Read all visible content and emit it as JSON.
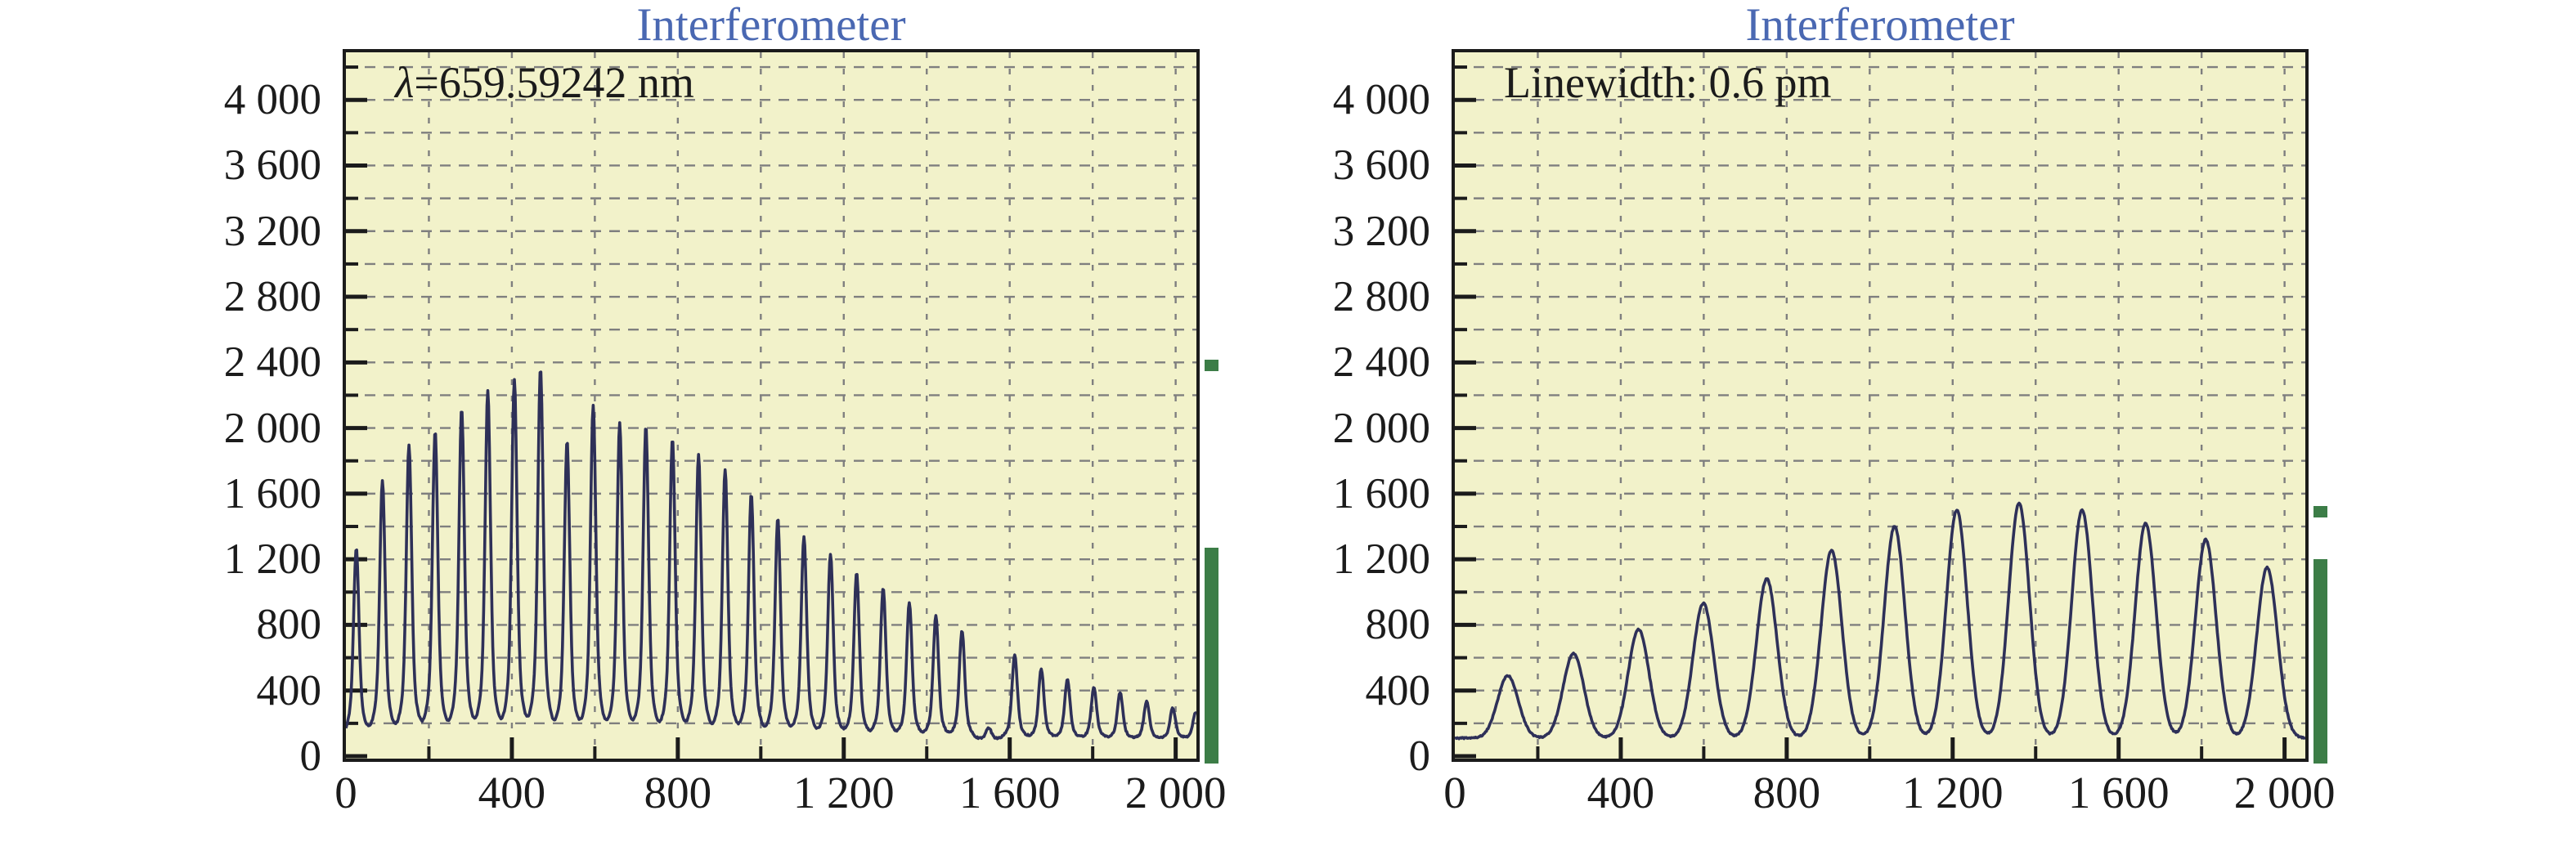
{
  "chart_data": [
    {
      "type": "line",
      "title": "Interferometer",
      "annotation_symbol": "λ",
      "annotation_rest": "=659.59242 nm",
      "xlabel": "",
      "ylabel": "",
      "xlim": [
        0,
        2050
      ],
      "ylim": [
        -15,
        4290
      ],
      "grid_step": 200,
      "label_step": 400,
      "legend": "none",
      "grid": "dashed",
      "x_ticks": [
        {
          "v": 0,
          "label": "0"
        },
        {
          "v": 400,
          "label": "400"
        },
        {
          "v": 800,
          "label": "800"
        },
        {
          "v": 1200,
          "label": "1 200"
        },
        {
          "v": 1600,
          "label": "1 600"
        },
        {
          "v": 2000,
          "label": "2 000"
        }
      ],
      "y_ticks": [
        {
          "v": 0,
          "label": "0"
        },
        {
          "v": 400,
          "label": "400"
        },
        {
          "v": 800,
          "label": "800"
        },
        {
          "v": 1200,
          "label": "1 200"
        },
        {
          "v": 1600,
          "label": "1 600"
        },
        {
          "v": 2000,
          "label": "2 000"
        },
        {
          "v": 2400,
          "label": "2 400"
        },
        {
          "v": 2800,
          "label": "2 800"
        },
        {
          "v": 3200,
          "label": "3 200"
        },
        {
          "v": 3600,
          "label": "3 600"
        },
        {
          "v": 4000,
          "label": "4 000"
        }
      ],
      "baseline": 100,
      "peak_sigma": 5.9,
      "pedestal_sigma": 16,
      "pedestal_weight": 0.22,
      "noise": 5,
      "peaks": [
        [
          25,
          1270
        ],
        [
          88,
          1680
        ],
        [
          152,
          1900
        ],
        [
          215,
          1980
        ],
        [
          279,
          2120
        ],
        [
          342,
          2230
        ],
        [
          406,
          2300
        ],
        [
          469,
          2365
        ],
        [
          533,
          1925
        ],
        [
          596,
          2135
        ],
        [
          660,
          2030
        ],
        [
          723,
          2015
        ],
        [
          787,
          1940
        ],
        [
          850,
          1840
        ],
        [
          914,
          1750
        ],
        [
          977,
          1600
        ],
        [
          1041,
          1450
        ],
        [
          1104,
          1335
        ],
        [
          1168,
          1230
        ],
        [
          1231,
          1120
        ],
        [
          1295,
          1025
        ],
        [
          1358,
          935
        ],
        [
          1422,
          855
        ],
        [
          1485,
          765
        ],
        [
          1549,
          175
        ],
        [
          1612,
          615
        ],
        [
          1676,
          530
        ],
        [
          1739,
          465
        ],
        [
          1803,
          420
        ],
        [
          1866,
          390
        ],
        [
          1930,
          335
        ],
        [
          1993,
          295
        ],
        [
          2048,
          265
        ]
      ],
      "indicator": {
        "marker_level": 2380,
        "bar_level": 1270
      },
      "colors": {
        "plot_bg": "#f2f2ca",
        "grid": "#7f7f7f",
        "line": "#2e3058",
        "frame": "#1b1b1b",
        "title": "#4a68b2",
        "indicator": "#3c7d47",
        "text": "#1b1b1b"
      }
    },
    {
      "type": "line",
      "title": "Interferometer",
      "annotation_symbol": "",
      "annotation_rest": "Linewidth: 0.6 pm",
      "xlabel": "",
      "ylabel": "",
      "xlim": [
        0,
        2050
      ],
      "ylim": [
        -15,
        4290
      ],
      "grid_step": 200,
      "label_step": 400,
      "legend": "none",
      "grid": "dashed",
      "x_ticks": [
        {
          "v": 0,
          "label": "0"
        },
        {
          "v": 400,
          "label": "400"
        },
        {
          "v": 800,
          "label": "800"
        },
        {
          "v": 1200,
          "label": "1 200"
        },
        {
          "v": 1600,
          "label": "1 600"
        },
        {
          "v": 2000,
          "label": "2 000"
        }
      ],
      "y_ticks": [
        {
          "v": 0,
          "label": "0"
        },
        {
          "v": 400,
          "label": "400"
        },
        {
          "v": 800,
          "label": "800"
        },
        {
          "v": 1200,
          "label": "1 200"
        },
        {
          "v": 1600,
          "label": "1 600"
        },
        {
          "v": 2000,
          "label": "2 000"
        },
        {
          "v": 2400,
          "label": "2 400"
        },
        {
          "v": 2800,
          "label": "2 800"
        },
        {
          "v": 3200,
          "label": "3 200"
        },
        {
          "v": 3600,
          "label": "3 600"
        },
        {
          "v": 4000,
          "label": "4 000"
        }
      ],
      "baseline": 110,
      "peak_sigma": 25,
      "pedestal_sigma": 0,
      "pedestal_weight": 0,
      "noise": 4,
      "peaks": [
        [
          128,
          490
        ],
        [
          286,
          625
        ],
        [
          443,
          772
        ],
        [
          599,
          932
        ],
        [
          752,
          1080
        ],
        [
          908,
          1255
        ],
        [
          1060,
          1400
        ],
        [
          1210,
          1500
        ],
        [
          1360,
          1540
        ],
        [
          1512,
          1500
        ],
        [
          1665,
          1420
        ],
        [
          1810,
          1320
        ],
        [
          1958,
          1150
        ]
      ],
      "indicator": {
        "marker_level": 1490,
        "bar_level": 1200
      },
      "colors": {
        "plot_bg": "#f2f2ca",
        "grid": "#7f7f7f",
        "line": "#2e3058",
        "frame": "#1b1b1b",
        "title": "#4a68b2",
        "indicator": "#3c7d47",
        "text": "#1b1b1b"
      }
    }
  ]
}
